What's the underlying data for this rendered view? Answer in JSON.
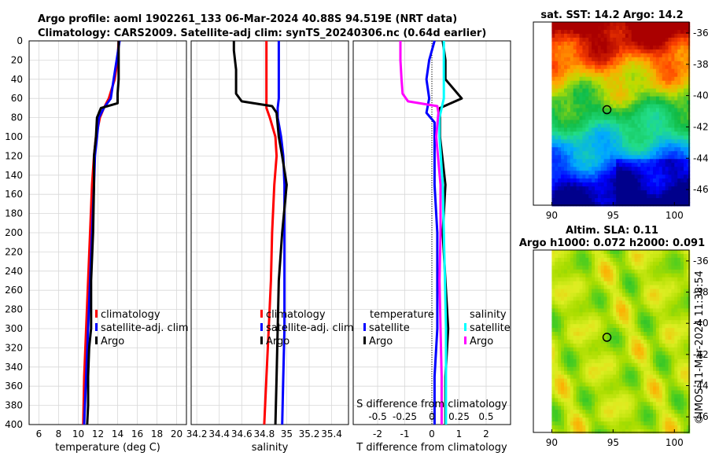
{
  "title": {
    "line1": "Argo profile: aoml 1902261_133 06-Mar-2024 40.88S 94.519E (NRT data)",
    "line2": "Climatology: CARS2009. Satellite-adj clim: synTS_20240306.nc (0.64d earlier)"
  },
  "watermark": "©IMOS 11-Mar-2024 11:38:54",
  "colors": {
    "climatology": "#ff0000",
    "satellite": "#0000ff",
    "argo": "#000000",
    "sat_salinity": "#00ffff",
    "clim_salinity_diff": "#ff00ff"
  },
  "chart_data": [
    {
      "type": "line",
      "name": "temperature-profile",
      "xlabel": "temperature (deg C)",
      "ylabel": "depth",
      "xlim": [
        5,
        21
      ],
      "ylim": [
        0,
        400
      ],
      "xticks": [
        "6",
        "8",
        "10",
        "12",
        "14",
        "16",
        "18",
        "20"
      ],
      "yticks": [
        "0",
        "20",
        "40",
        "60",
        "80",
        "100",
        "120",
        "140",
        "160",
        "180",
        "200",
        "220",
        "240",
        "260",
        "280",
        "300",
        "320",
        "340",
        "360",
        "380",
        "400"
      ],
      "legend": [
        "climatology",
        "satellite-adj. clim",
        "Argo"
      ],
      "series": [
        {
          "name": "climatology",
          "depth": [
            0,
            20,
            40,
            60,
            70,
            80,
            100,
            120,
            150,
            200,
            250,
            300,
            350,
            400
          ],
          "values": [
            14.1,
            14.0,
            13.7,
            13.1,
            12.6,
            12.2,
            11.8,
            11.6,
            11.4,
            11.2,
            11.0,
            10.8,
            10.6,
            10.5
          ]
        },
        {
          "name": "satellite-adj. clim",
          "depth": [
            0,
            20,
            40,
            60,
            70,
            80,
            100,
            120,
            150,
            200,
            250,
            300,
            350,
            400
          ],
          "values": [
            14.2,
            13.9,
            13.6,
            13.3,
            12.6,
            12.1,
            11.9,
            11.7,
            11.6,
            11.4,
            11.2,
            11.0,
            10.8,
            10.6
          ]
        },
        {
          "name": "Argo",
          "depth": [
            0,
            20,
            40,
            55,
            65,
            70,
            80,
            100,
            120,
            150,
            200,
            250,
            300,
            320,
            350,
            380,
            400
          ],
          "values": [
            14.1,
            14.1,
            14.1,
            14.0,
            14.0,
            12.3,
            11.9,
            11.8,
            11.6,
            11.6,
            11.5,
            11.3,
            11.3,
            11.1,
            11.0,
            11.0,
            10.9
          ]
        }
      ]
    },
    {
      "type": "line",
      "name": "salinity-profile",
      "xlabel": "salinity",
      "xlim": [
        34.15,
        35.55
      ],
      "ylim": [
        0,
        400
      ],
      "xticks": [
        "34.2",
        "34.4",
        "34.6",
        "34.8",
        "35",
        "35.2",
        "35.4"
      ],
      "legend": [
        "climatology",
        "satellite-adj. clim",
        "Argo"
      ],
      "series": [
        {
          "name": "climatology",
          "depth": [
            0,
            20,
            40,
            60,
            70,
            80,
            100,
            120,
            150,
            200,
            250,
            300,
            350,
            400
          ],
          "values": [
            34.82,
            34.82,
            34.82,
            34.82,
            34.82,
            34.85,
            34.9,
            34.91,
            34.89,
            34.87,
            34.86,
            34.84,
            34.82,
            34.8
          ]
        },
        {
          "name": "satellite-adj. clim",
          "depth": [
            0,
            20,
            40,
            60,
            70,
            80,
            100,
            120,
            150,
            200,
            250,
            300,
            350,
            400
          ],
          "values": [
            34.93,
            34.93,
            34.93,
            34.93,
            34.92,
            34.92,
            34.95,
            34.97,
            34.98,
            34.98,
            34.98,
            34.98,
            34.97,
            34.96
          ]
        },
        {
          "name": "Argo",
          "depth": [
            0,
            10,
            30,
            55,
            63,
            68,
            75,
            100,
            120,
            150,
            200,
            250,
            300,
            350,
            400
          ],
          "values": [
            34.53,
            34.53,
            34.55,
            34.55,
            34.6,
            34.87,
            34.91,
            34.93,
            34.96,
            35.0,
            34.96,
            34.93,
            34.92,
            34.91,
            34.9
          ]
        }
      ]
    },
    {
      "type": "line",
      "name": "difference-profile",
      "xlabel": "T difference from climatology",
      "xlabel2": "S difference from climatology",
      "xlim": [
        -2.9,
        2.9
      ],
      "ylim": [
        0,
        400
      ],
      "xticks": [
        "-2",
        "-1",
        "0",
        "1",
        "2"
      ],
      "xticks2": [
        "-0.5",
        "-0.25",
        "0",
        "0.25",
        "0.5"
      ],
      "legend_temperature": {
        "title": "temperature",
        "items": [
          "satellite",
          "Argo"
        ]
      },
      "legend_salinity": {
        "title": "salinity",
        "items": [
          "satellite",
          "Argo"
        ]
      },
      "series": [
        {
          "name": "temperature satellite",
          "depth": [
            0,
            20,
            40,
            60,
            75,
            85,
            100,
            150,
            200,
            250,
            300,
            350,
            400
          ],
          "values": [
            0.1,
            -0.1,
            -0.2,
            -0.1,
            -0.2,
            0.1,
            0.1,
            0.1,
            0.2,
            0.2,
            0.2,
            0.1,
            0.1
          ]
        },
        {
          "name": "temperature Argo",
          "depth": [
            0,
            20,
            40,
            60,
            70,
            80,
            100,
            150,
            200,
            250,
            300,
            350,
            400
          ],
          "values": [
            0.4,
            0.5,
            0.5,
            1.1,
            0.3,
            0.3,
            0.3,
            0.5,
            0.4,
            0.5,
            0.6,
            0.5,
            0.5
          ]
        },
        {
          "name": "salinity satellite",
          "depth": [
            0,
            20,
            40,
            60,
            80,
            100,
            150,
            200,
            250,
            300,
            350,
            400
          ],
          "values": [
            0.11,
            0.11,
            0.11,
            0.11,
            0.07,
            0.07,
            0.1,
            0.11,
            0.12,
            0.13,
            0.13,
            0.13
          ]
        },
        {
          "name": "salinity Argo",
          "depth": [
            0,
            20,
            40,
            55,
            63,
            68,
            75,
            100,
            150,
            200,
            250,
            300,
            350,
            400
          ],
          "values": [
            -0.29,
            -0.29,
            -0.28,
            -0.27,
            -0.22,
            0.05,
            0.06,
            0.04,
            0.08,
            0.08,
            0.07,
            0.08,
            0.09,
            0.09
          ]
        }
      ]
    },
    {
      "type": "heatmap",
      "name": "sst-map",
      "title": "sat. SST: 14.2 Argo: 14.2",
      "xlim": [
        88.5,
        101.2
      ],
      "ylim": [
        -47,
        -35.3
      ],
      "xticks": [
        "90",
        "95",
        "100"
      ],
      "yticks": [
        "-36",
        "-38",
        "-40",
        "-42",
        "-44",
        "-46"
      ],
      "float_position": {
        "lon": 94.5,
        "lat": -40.9
      }
    },
    {
      "type": "heatmap",
      "name": "sla-map",
      "title": "Altim. SLA: 0.11",
      "subtitle": "Argo h1000: 0.072 h2000: 0.091",
      "xlim": [
        88.5,
        101.2
      ],
      "ylim": [
        -47,
        -35.3
      ],
      "xticks": [
        "90",
        "95",
        "100"
      ],
      "yticks": [
        "-36",
        "-38",
        "-40",
        "-42",
        "-44",
        "-46"
      ],
      "float_position": {
        "lon": 94.5,
        "lat": -40.9
      }
    }
  ]
}
